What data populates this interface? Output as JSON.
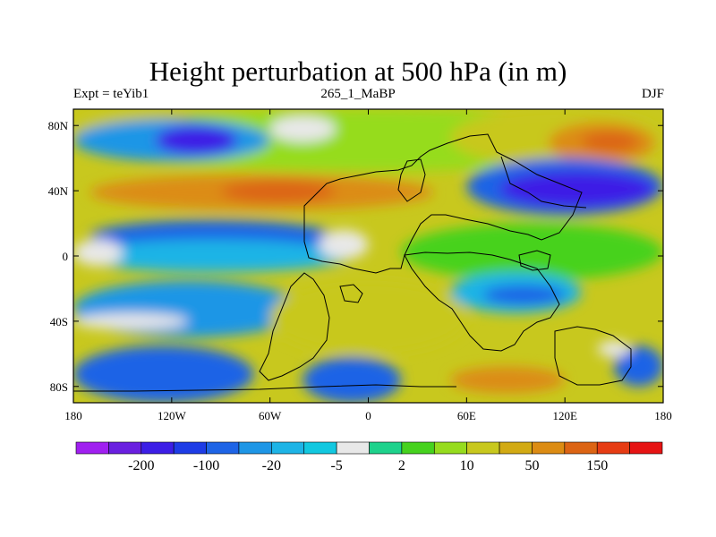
{
  "title": "Height perturbation at 500 hPa (in m)",
  "subtitle_left": "Expt = teYib1",
  "subtitle_center": "265_1_MaBP",
  "subtitle_right": "DJF",
  "axes": {
    "x_ticks": [
      {
        "value": -180,
        "label": "180"
      },
      {
        "value": -120,
        "label": "120W"
      },
      {
        "value": -60,
        "label": "60W"
      },
      {
        "value": 0,
        "label": "0"
      },
      {
        "value": 60,
        "label": "60E"
      },
      {
        "value": 120,
        "label": "120E"
      },
      {
        "value": 180,
        "label": "180"
      }
    ],
    "y_ticks": [
      {
        "value": 80,
        "label": "80N"
      },
      {
        "value": 40,
        "label": "40N"
      },
      {
        "value": 0,
        "label": "0"
      },
      {
        "value": -40,
        "label": "40S"
      },
      {
        "value": -80,
        "label": "80S"
      }
    ],
    "xlim": [
      -180,
      180
    ],
    "ylim": [
      -90,
      90
    ]
  },
  "colorbar": {
    "colors": [
      "#a020f0",
      "#6a20e0",
      "#3c1ee6",
      "#1e3ce6",
      "#1e64e6",
      "#1e96e6",
      "#1eb4e6",
      "#12c8e0",
      "#e8e8e8",
      "#1ed28c",
      "#46d21e",
      "#96dc1e",
      "#c8c81e",
      "#d2aa14",
      "#dc8c14",
      "#dc6414",
      "#e63c14",
      "#e61414"
    ],
    "labels": [
      {
        "after_index": 1,
        "text": "-200"
      },
      {
        "after_index": 3,
        "text": "-100"
      },
      {
        "after_index": 5,
        "text": "-20"
      },
      {
        "after_index": 7,
        "text": "-5"
      },
      {
        "after_index": 9,
        "text": "2"
      },
      {
        "after_index": 11,
        "text": "10"
      },
      {
        "after_index": 13,
        "text": "50"
      },
      {
        "after_index": 15,
        "text": "150"
      }
    ]
  },
  "fields": {
    "background_color": "#c8c81e",
    "regions": [
      {
        "name": "nh-high-lat-green-band",
        "color": "#96dc1e",
        "lon": [
          -180,
          180
        ],
        "lat": [
          52,
          90
        ]
      },
      {
        "name": "nh-polar-yellow",
        "color": "#c8c81e",
        "lon": [
          -180,
          -100
        ],
        "lat": [
          62,
          90
        ]
      },
      {
        "name": "nh-high-blue-left",
        "color": "#1e96e6",
        "lon": [
          -180,
          -60
        ],
        "lat": [
          58,
          84
        ]
      },
      {
        "name": "nh-purple-canada",
        "color": "#3c1ee6",
        "lon": [
          -130,
          -80
        ],
        "lat": [
          62,
          80
        ]
      },
      {
        "name": "white-gap-top-mid",
        "color": "#e8e8e8",
        "lon": [
          -60,
          -20
        ],
        "lat": [
          70,
          86
        ]
      },
      {
        "name": "nh-high-yellow-right",
        "color": "#c8c81e",
        "lon": [
          50,
          180
        ],
        "lat": [
          55,
          90
        ]
      },
      {
        "name": "nh-orange-siberia",
        "color": "#dc8c14",
        "lon": [
          110,
          175
        ],
        "lat": [
          57,
          82
        ]
      },
      {
        "name": "nh-red-siberia",
        "color": "#dc6414",
        "lon": [
          130,
          165
        ],
        "lat": [
          64,
          76
        ]
      },
      {
        "name": "nh-mid-orange-band",
        "color": "#dc8c14",
        "lon": [
          -170,
          40
        ],
        "lat": [
          28,
          50
        ]
      },
      {
        "name": "nh-mid-red-band",
        "color": "#dc6414",
        "lon": [
          -90,
          -20
        ],
        "lat": [
          33,
          46
        ]
      },
      {
        "name": "nh-mid-blue-asia",
        "color": "#1e64e6",
        "lon": [
          60,
          180
        ],
        "lat": [
          25,
          60
        ]
      },
      {
        "name": "nh-mid-purple-asia",
        "color": "#3c1ee6",
        "lon": [
          80,
          175
        ],
        "lat": [
          30,
          52
        ]
      },
      {
        "name": "tropic-blue-pacific",
        "color": "#1e64e6",
        "lon": [
          -170,
          -20
        ],
        "lat": [
          2,
          22
        ]
      },
      {
        "name": "tropic-cyan-pacific",
        "color": "#1eb4e6",
        "lon": [
          -180,
          -10
        ],
        "lat": [
          -10,
          10
        ]
      },
      {
        "name": "white-tropics-west",
        "color": "#e8e8e8",
        "lon": [
          -180,
          -150
        ],
        "lat": [
          -6,
          10
        ]
      },
      {
        "name": "white-tropics-atl",
        "color": "#e8e8e8",
        "lon": [
          -30,
          0
        ],
        "lat": [
          -2,
          16
        ]
      },
      {
        "name": "green-tropic-east",
        "color": "#46d21e",
        "lon": [
          20,
          180
        ],
        "lat": [
          -15,
          20
        ]
      },
      {
        "name": "cyan-indian-ocean",
        "color": "#1eb4e6",
        "lon": [
          50,
          130
        ],
        "lat": [
          -35,
          -10
        ]
      },
      {
        "name": "blue-indian-ocean",
        "color": "#1e64e6",
        "lon": [
          70,
          120
        ],
        "lat": [
          -30,
          -18
        ]
      },
      {
        "name": "sh-blue-south-pacific",
        "color": "#1e96e6",
        "lon": [
          -180,
          -40
        ],
        "lat": [
          -50,
          -15
        ]
      },
      {
        "name": "sh-yellow-south-atl",
        "color": "#c8c81e",
        "lon": [
          -60,
          60
        ],
        "lat": [
          -60,
          -15
        ]
      },
      {
        "name": "sh-white-strip",
        "color": "#e8e8e8",
        "lon": [
          -180,
          -110
        ],
        "lat": [
          -45,
          -35
        ]
      },
      {
        "name": "sh-blue-southern-ocean",
        "color": "#1e64e6",
        "lon": [
          -180,
          -70
        ],
        "lat": [
          -90,
          -55
        ]
      },
      {
        "name": "sh-blue-southern-ocean-2",
        "color": "#1e64e6",
        "lon": [
          -40,
          20
        ],
        "lat": [
          -90,
          -62
        ]
      },
      {
        "name": "sh-orange-southern",
        "color": "#dc8c14",
        "lon": [
          50,
          120
        ],
        "lat": [
          -84,
          -68
        ]
      },
      {
        "name": "sh-blue-far-east",
        "color": "#1e64e6",
        "lon": [
          150,
          180
        ],
        "lat": [
          -80,
          -55
        ]
      },
      {
        "name": "sh-white-far-east",
        "color": "#e8e8e8",
        "lon": [
          140,
          160
        ],
        "lat": [
          -62,
          -52
        ]
      }
    ]
  }
}
